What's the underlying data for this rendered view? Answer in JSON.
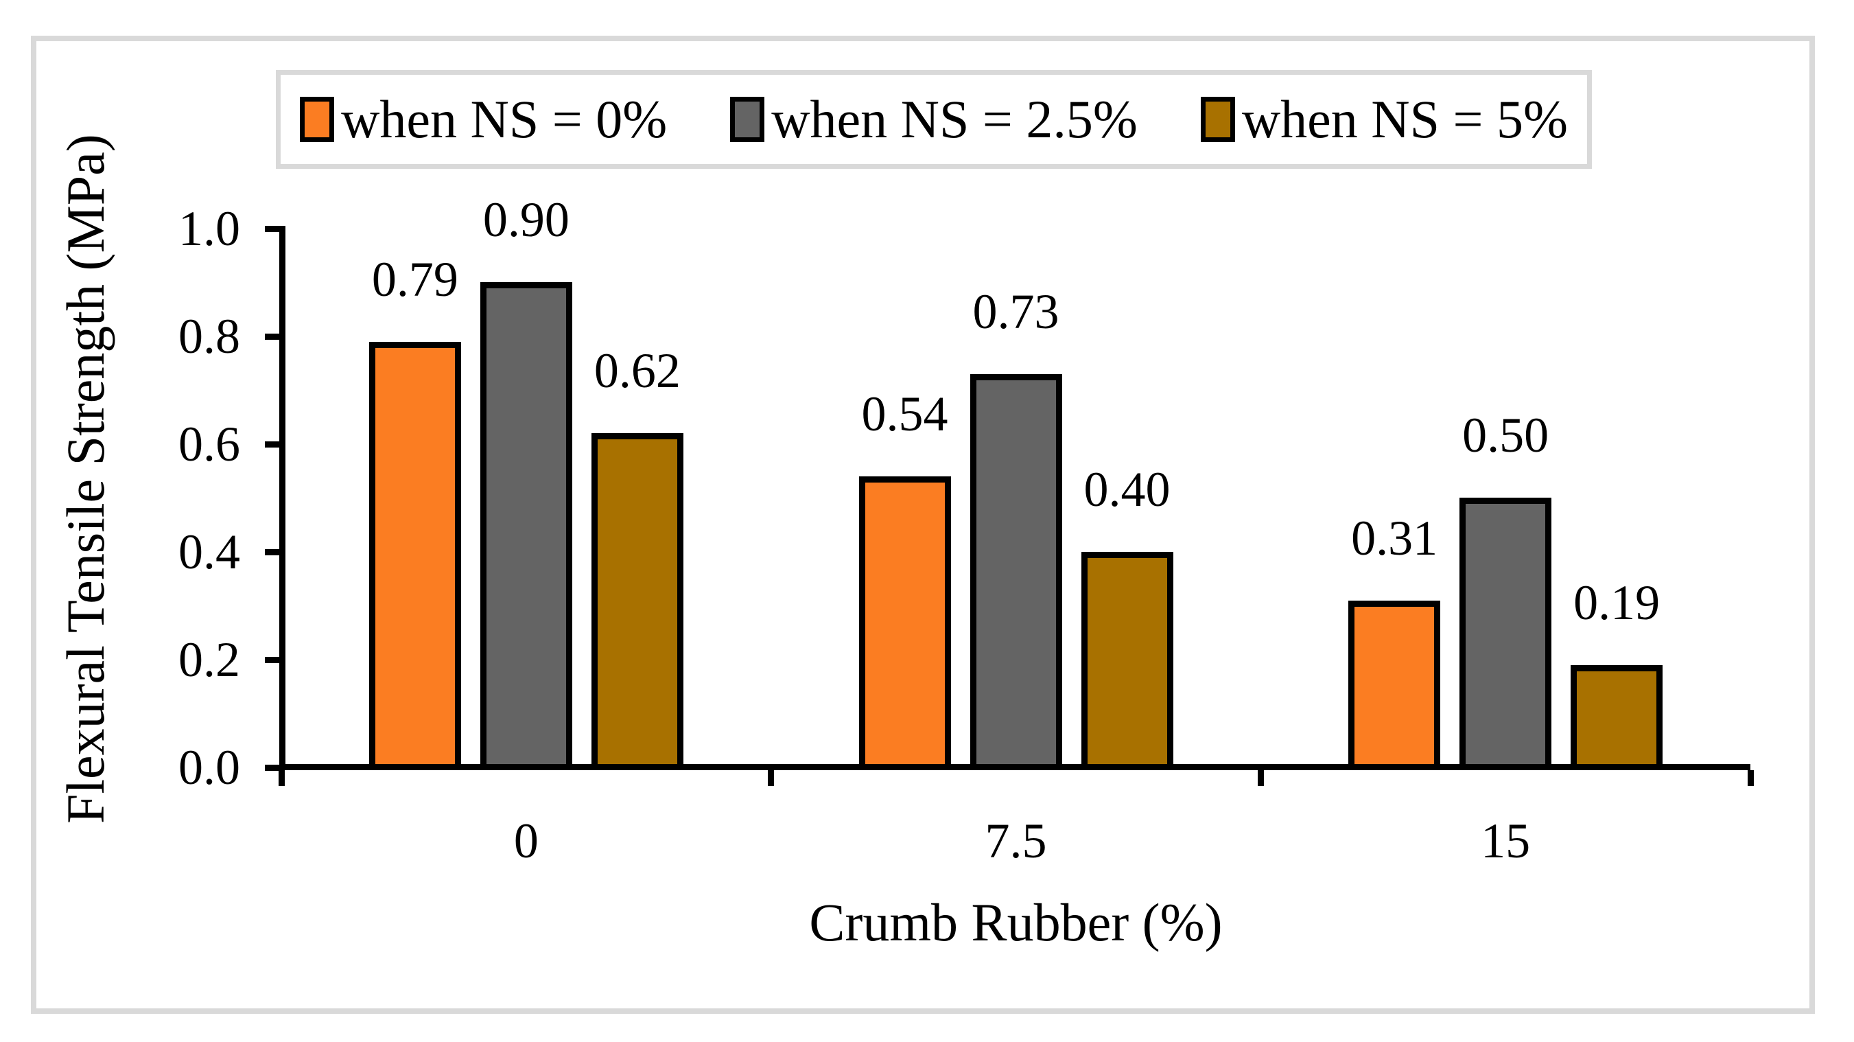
{
  "figure": {
    "frame_border_color": "#d9d9d9",
    "background_color": "#ffffff",
    "axis_color": "#000000"
  },
  "chart_data": {
    "type": "bar",
    "title": "",
    "xlabel": "Crumb Rubber (%)",
    "ylabel": "Flexural Tensile Strength (MPa)",
    "categories": [
      "0",
      "7.5",
      "15"
    ],
    "series": [
      {
        "name": "when NS = 0%",
        "color": "#fb7d22",
        "values": [
          0.79,
          0.54,
          0.31
        ],
        "labels": [
          "0.79",
          "0.54",
          "0.31"
        ]
      },
      {
        "name": "when NS = 2.5%",
        "color": "#646464",
        "values": [
          0.9,
          0.73,
          0.5
        ],
        "labels": [
          "0.90",
          "0.73",
          "0.50"
        ]
      },
      {
        "name": "when NS = 5%",
        "color": "#a87100",
        "values": [
          0.62,
          0.4,
          0.19
        ],
        "labels": [
          "0.62",
          "0.40",
          "0.19"
        ]
      }
    ],
    "ylim": [
      0.0,
      1.0
    ],
    "yticks": [
      {
        "value": 0.0,
        "label": "0.0"
      },
      {
        "value": 0.2,
        "label": "0.2"
      },
      {
        "value": 0.4,
        "label": "0.4"
      },
      {
        "value": 0.6,
        "label": "0.6"
      },
      {
        "value": 0.8,
        "label": "0.8"
      },
      {
        "value": 1.0,
        "label": "1.0"
      }
    ],
    "grid": false,
    "legend_position": "top"
  }
}
